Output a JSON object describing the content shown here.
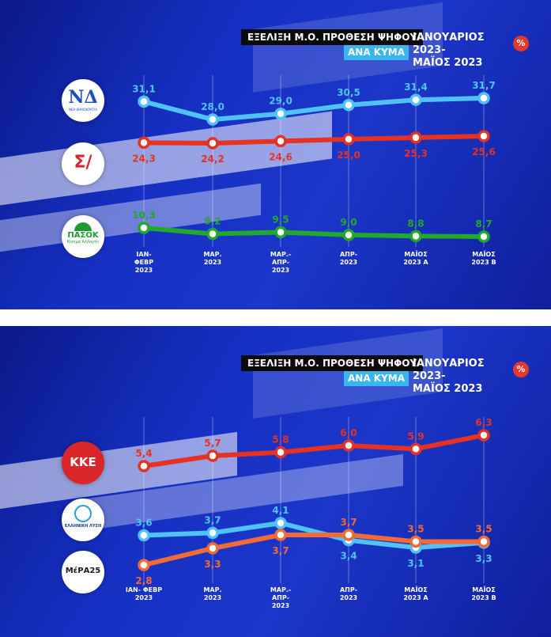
{
  "header": {
    "title": "ΕΞΕΛΙΞΗ Μ.Ο. ΠΡΟΘΕΣΗ ΨΗΦΟΥ",
    "subtitle": "ΑΝΑ ΚΥΜΑ",
    "period_line1": "ΙΑΝΟΥΑΡΙΟΣ 2023-",
    "period_line2": "ΜΑΪΟΣ 2023",
    "percent": "%"
  },
  "logos": {
    "nd": "ΝΔ",
    "nd_caption": "ΝΕΑ ΔΗΜΟΚΡΑΤΙΑ",
    "syriza": "Σ/",
    "pasok": "ΠΑΣΟΚ",
    "pasok_caption": "Κίνημα Αλλαγής",
    "kke": "ΚΚΕ",
    "elliniki_lysi": "ΕΛΛΗΝΙΚΗ ΛΥΣΗ",
    "mera25": "ΜέΡΑ25"
  },
  "colors": {
    "nd": "#4fc3f7",
    "syriza": "#e53222",
    "pasok": "#22a82a",
    "kke": "#e53222",
    "elliniki_lysi": "#4fc3f7",
    "mera25": "#f26a35"
  },
  "chart_data": [
    {
      "type": "line",
      "categories": [
        [
          "ΙΑΝ-",
          "ΦΕΒΡ",
          "2023"
        ],
        [
          "ΜΑΡ.",
          "2023"
        ],
        [
          "ΜΑΡ.-",
          "ΑΠΡ-",
          "2023"
        ],
        [
          "ΑΠΡ-",
          "2023"
        ],
        [
          "ΜΑΪΟΣ",
          "2023 Α"
        ],
        [
          "ΜΑΪΟΣ",
          "2023 Β"
        ]
      ],
      "series": [
        {
          "values": [
            31.1,
            28.0,
            29.0,
            30.5,
            31.4,
            31.7
          ],
          "labels": [
            "31,1",
            "28,0",
            "29,0",
            "30,5",
            "31,4",
            "31,7"
          ],
          "color": "#4fc3f7",
          "label_pos": "above"
        },
        {
          "values": [
            24.3,
            24.2,
            24.6,
            25.0,
            25.3,
            25.6
          ],
          "labels": [
            "24,3",
            "24,2",
            "24,6",
            "25,0",
            "25,3",
            "25,6"
          ],
          "color": "#e53222",
          "label_pos": "below"
        },
        {
          "values": [
            10.3,
            9.2,
            9.5,
            9.0,
            8.8,
            8.7
          ],
          "labels": [
            "10,3",
            "9,2",
            "9,5",
            "9,0",
            "8,8",
            "8,7"
          ],
          "color": "#22a82a",
          "label_pos": "above"
        }
      ]
    },
    {
      "type": "line",
      "categories": [
        [
          "ΙΑΝ- ΦΕΒΡ",
          "2023"
        ],
        [
          "ΜΑΡ.",
          "2023"
        ],
        [
          "ΜΑΡ.-",
          "ΑΠΡ-",
          "2023"
        ],
        [
          "ΑΠΡ-",
          "2023"
        ],
        [
          "ΜΑΪΟΣ",
          "2023 Α"
        ],
        [
          "ΜΑΪΟΣ",
          "2023 Β"
        ]
      ],
      "series": [
        {
          "values": [
            5.4,
            5.7,
            5.8,
            6.0,
            5.9,
            6.3
          ],
          "labels": [
            "5,4",
            "5,7",
            "5,8",
            "6,0",
            "5,9",
            "6,3"
          ],
          "color": "#e53222",
          "label_pos": "above"
        },
        {
          "values": [
            3.6,
            3.7,
            4.1,
            3.4,
            3.1,
            3.3
          ],
          "labels": [
            "3,6",
            "3,7",
            "4,1",
            "3,4",
            "3,1",
            "3,3"
          ],
          "color": "#4fc3f7",
          "label_pos": [
            "above",
            "above",
            "above",
            "below",
            "below",
            "below"
          ]
        },
        {
          "values": [
            2.8,
            3.3,
            3.7,
            3.7,
            3.5,
            3.5
          ],
          "labels": [
            "2,8",
            "3,3",
            "3,7",
            "3,7",
            "3,5",
            "3,5"
          ],
          "color": "#f26a35",
          "label_pos": [
            "below",
            "below",
            "below",
            "above",
            "above",
            "above"
          ]
        }
      ]
    }
  ]
}
